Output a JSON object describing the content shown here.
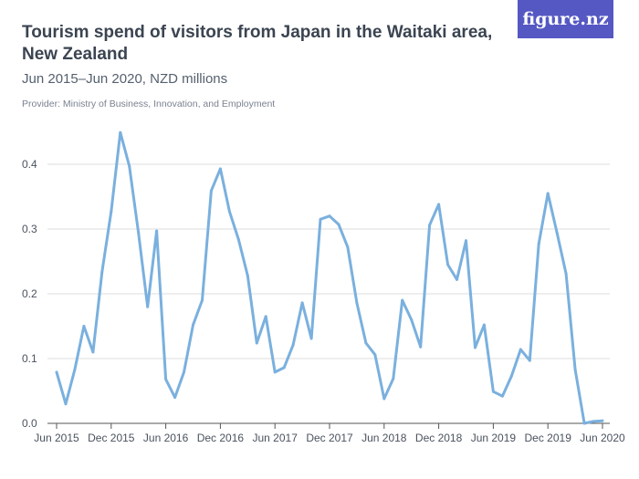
{
  "header": {
    "title": "Tourism spend of visitors from Japan in the Waitaki area, New Zealand",
    "subtitle": "Jun 2015–Jun 2020, NZD millions",
    "provider": "Provider: Ministry of Business, Innovation, and Employment",
    "logo": "figure.nz"
  },
  "chart_data": {
    "type": "line",
    "title": "Tourism spend of visitors from Japan in the Waitaki area, New Zealand",
    "subtitle": "Jun 2015–Jun 2020, NZD millions",
    "xlabel": "",
    "ylabel": "",
    "ylim": [
      0,
      0.45
    ],
    "yticks": [
      "0.0",
      "0.1",
      "0.2",
      "0.3",
      "0.4"
    ],
    "xticks": [
      "Jun 2015",
      "Dec 2015",
      "Jun 2016",
      "Dec 2016",
      "Jun 2017",
      "Dec 2017",
      "Jun 2018",
      "Dec 2018",
      "Jun 2019",
      "Dec 2019",
      "Jun 2020"
    ],
    "x_start": "Jun 2015",
    "x_end": "Jun 2020",
    "frequency": "monthly",
    "grid": true,
    "color": "#7ab0de",
    "values": [
      0.079,
      0.03,
      0.083,
      0.15,
      0.11,
      0.234,
      0.327,
      0.449,
      0.397,
      0.294,
      0.18,
      0.297,
      0.068,
      0.04,
      0.079,
      0.152,
      0.19,
      0.359,
      0.393,
      0.327,
      0.284,
      0.228,
      0.124,
      0.165,
      0.079,
      0.086,
      0.121,
      0.186,
      0.131,
      0.315,
      0.32,
      0.307,
      0.272,
      0.186,
      0.124,
      0.106,
      0.038,
      0.069,
      0.19,
      0.16,
      0.118,
      0.306,
      0.338,
      0.245,
      0.222,
      0.282,
      0.117,
      0.152,
      0.049,
      0.042,
      0.073,
      0.114,
      0.097,
      0.277,
      0.355,
      0.294,
      0.231,
      0.083,
      0.0,
      0.003,
      0.004
    ]
  }
}
